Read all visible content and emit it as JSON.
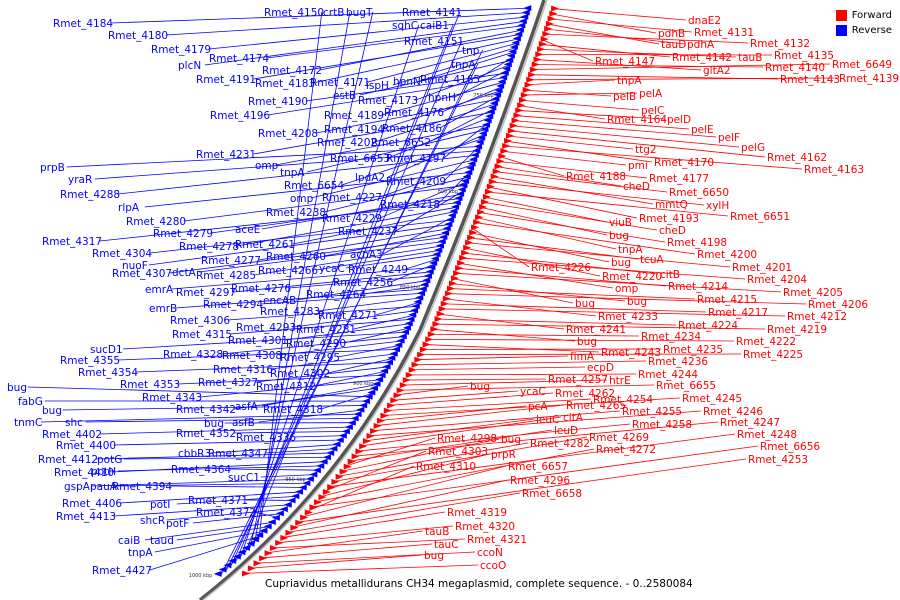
{
  "caption": "Cupriavidus metallidurans CH34 megaplasmid, complete sequence. - 0..2580084",
  "legend": {
    "forward": {
      "label": "Forward",
      "color": "#ff0000"
    },
    "reverse": {
      "label": "Reverse",
      "color": "#0000ff"
    }
  },
  "ticks": [
    "750 kbp",
    "800 kbp",
    "850 kbp",
    "900 kbp",
    "950 kbp",
    "1000 kbp"
  ],
  "reverse_genes": [
    [
      "Rmet_4184",
      53,
      19
    ],
    [
      "Rmet_4180",
      108,
      31
    ],
    [
      "Rmet_4179",
      151,
      45
    ],
    [
      "plcN",
      178,
      61
    ],
    [
      "Rmet_4174",
      209,
      54
    ],
    [
      "Rmet_4172",
      262,
      66
    ],
    [
      "Rmet_4191",
      196,
      75
    ],
    [
      "Rmet_4183",
      255,
      79
    ],
    [
      "Rmet_4171",
      310,
      78
    ],
    [
      "ispH",
      366,
      81
    ],
    [
      "hpnN",
      393,
      77
    ],
    [
      "Rmet_4165",
      420,
      75
    ],
    [
      "estB",
      333,
      91
    ],
    [
      "Rmet_4173",
      358,
      96
    ],
    [
      "hpnH",
      428,
      93
    ],
    [
      "Rmet_4190",
      248,
      97
    ],
    [
      "Rmet_4196",
      210,
      111
    ],
    [
      "Rmet_4189",
      324,
      111
    ],
    [
      "Rmet_4176",
      384,
      108
    ],
    [
      "Rmet_4194",
      324,
      125
    ],
    [
      "Rmet_4186",
      382,
      124
    ],
    [
      "Rmet_4208",
      258,
      129
    ],
    [
      "Rmet_4202",
      317,
      138
    ],
    [
      "Rmet_6652",
      371,
      138
    ],
    [
      "Rmet_4231",
      196,
      150
    ],
    [
      "Rmet_6653",
      330,
      154
    ],
    [
      "Rmet_4197",
      386,
      154
    ],
    [
      "omp",
      255,
      161
    ],
    [
      "tnpA",
      280,
      168
    ],
    [
      "lpdA2",
      355,
      173
    ],
    [
      "Rmet_6654",
      284,
      181
    ],
    [
      "Rmet_4209",
      386,
      177
    ],
    [
      "prpB",
      40,
      163
    ],
    [
      "yraR",
      68,
      175
    ],
    [
      "Rmet_4288",
      60,
      190
    ],
    [
      "omp",
      290,
      194
    ],
    [
      "Rmet_4227",
      322,
      193
    ],
    [
      "Rmet_4218",
      380,
      200
    ],
    [
      "rlpA",
      118,
      203
    ],
    [
      "Rmet_4238",
      266,
      208
    ],
    [
      "Rmet_4229",
      322,
      214
    ],
    [
      "Rmet_4280",
      126,
      217
    ],
    [
      "Rmet_4237",
      338,
      227
    ],
    [
      "aceE",
      235,
      225
    ],
    [
      "Rmet_4279",
      153,
      229
    ],
    [
      "Rmet_4317",
      42,
      237
    ],
    [
      "Rmet_4278",
      179,
      242
    ],
    [
      "Rmet_4261",
      235,
      240
    ],
    [
      "acnA3",
      350,
      250
    ],
    [
      "Rmet_4304",
      92,
      249
    ],
    [
      "nuoF",
      122,
      261
    ],
    [
      "Rmet_4277",
      201,
      256
    ],
    [
      "Rmet_4260",
      266,
      252
    ],
    [
      "Rmet_4307",
      112,
      269
    ],
    [
      "dctA",
      172,
      268
    ],
    [
      "Rmet_4285",
      196,
      271
    ],
    [
      "Rmet_4266",
      258,
      266
    ],
    [
      "ycaC",
      319,
      264
    ],
    [
      "Rmet_4249",
      348,
      265
    ],
    [
      "Rmet_4256",
      333,
      278
    ],
    [
      "emrA",
      145,
      285
    ],
    [
      "Rmet_4297",
      176,
      288
    ],
    [
      "Rmet_4276",
      231,
      284
    ],
    [
      "encAB",
      263,
      296
    ],
    [
      "Rmet_4264",
      306,
      290
    ],
    [
      "emrB",
      149,
      304
    ],
    [
      "Rmet_4294",
      203,
      300
    ],
    [
      "Rmet_4283",
      260,
      307
    ],
    [
      "Rmet_4271",
      318,
      311
    ],
    [
      "Rmet_4306",
      170,
      316
    ],
    [
      "Rmet_4293",
      236,
      323
    ],
    [
      "Rmet_4281",
      296,
      325
    ],
    [
      "Rmet_4315",
      172,
      330
    ],
    [
      "Rmet_4301",
      228,
      336
    ],
    [
      "Rmet_4290",
      286,
      339
    ],
    [
      "sucD1",
      90,
      345
    ],
    [
      "Rmet_4328",
      163,
      350
    ],
    [
      "Rmet_4308",
      222,
      351
    ],
    [
      "Rmet_4295",
      280,
      353
    ],
    [
      "Rmet_4355",
      60,
      356
    ],
    [
      "Rmet_4316",
      213,
      365
    ],
    [
      "Rmet_4302",
      270,
      369
    ],
    [
      "Rmet_4354",
      78,
      368
    ],
    [
      "Rmet_4327",
      198,
      378
    ],
    [
      "Rmet_4312",
      256,
      382
    ],
    [
      "Rmet_4353",
      120,
      380
    ],
    [
      "Rmet_4343",
      142,
      393
    ],
    [
      "asfA",
      235,
      402
    ],
    [
      "Rmet_4342",
      176,
      405
    ],
    [
      "Rmet_4318",
      263,
      405
    ],
    [
      "bug",
      7,
      383
    ],
    [
      "fabG",
      18,
      397
    ],
    [
      "bug",
      42,
      406
    ],
    [
      "asfB",
      232,
      418
    ],
    [
      "tnmC",
      14,
      418
    ],
    [
      "shc",
      65,
      418
    ],
    [
      "bug",
      204,
      419
    ],
    [
      "Rmet_4402",
      42,
      430
    ],
    [
      "Rmet_4352",
      176,
      429
    ],
    [
      "Rmet_4336",
      236,
      433
    ],
    [
      "Rmet_4400",
      56,
      441
    ],
    [
      "cbbR3",
      178,
      449
    ],
    [
      "Rmet_4347",
      208,
      449
    ],
    [
      "Rmet_4412",
      38,
      455
    ],
    [
      "potG",
      97,
      455
    ],
    [
      "Rmet_4410",
      54,
      468
    ],
    [
      "potH",
      91,
      467
    ],
    [
      "Rmet_4364",
      171,
      465
    ],
    [
      "sucC1",
      228,
      473
    ],
    [
      "gspA",
      64,
      482
    ],
    [
      "pauA",
      90,
      482
    ],
    [
      "Rmet_4394",
      112,
      482
    ],
    [
      "Rmet_4406",
      62,
      499
    ],
    [
      "potI",
      150,
      500
    ],
    [
      "Rmet_4371",
      188,
      496
    ],
    [
      "Rmet_4413",
      56,
      512
    ],
    [
      "shcR",
      140,
      516
    ],
    [
      "potF",
      166,
      519
    ],
    [
      "Rmet_4372",
      196,
      508
    ],
    [
      "caiB",
      118,
      536
    ],
    [
      "taud",
      150,
      536
    ],
    [
      "tnpA",
      128,
      548
    ],
    [
      "Rmet_4427",
      92,
      566
    ],
    [
      "Rmet_4150",
      264,
      8
    ],
    [
      "crtB",
      323,
      8
    ],
    [
      "bugT",
      346,
      8
    ],
    [
      "Rmet_4141",
      402,
      8
    ],
    [
      "sqhC",
      392,
      21
    ],
    [
      "caiB1",
      420,
      21
    ],
    [
      "Rmet_4151",
      404,
      37
    ],
    [
      "tnp",
      462,
      46
    ],
    [
      "tnpA",
      451,
      60
    ]
  ],
  "forward_genes": [
    [
      "dnaE2",
      688,
      16
    ],
    [
      "pdhB",
      658,
      29
    ],
    [
      "Rmet_4131",
      694,
      28
    ],
    [
      "tauD",
      661,
      40
    ],
    [
      "pdhA",
      687,
      40
    ],
    [
      "Rmet_4132",
      750,
      39
    ],
    [
      "Rmet_4147",
      595,
      57
    ],
    [
      "Rmet_4142",
      672,
      53
    ],
    [
      "tauB",
      738,
      53
    ],
    [
      "Rmet_4135",
      774,
      51
    ],
    [
      "gltA2",
      703,
      66
    ],
    [
      "Rmet_4140",
      765,
      63
    ],
    [
      "Rmet_6649",
      832,
      60
    ],
    [
      "Rmet_4143",
      780,
      75
    ],
    [
      "Rmet_4139",
      839,
      74
    ],
    [
      "tnpA",
      617,
      76
    ],
    [
      "pelB",
      613,
      92
    ],
    [
      "pelA",
      639,
      89
    ],
    [
      "pelC",
      641,
      106
    ],
    [
      "Rmet_4164",
      607,
      115
    ],
    [
      "pelD",
      667,
      115
    ],
    [
      "pelE",
      691,
      125
    ],
    [
      "pelF",
      718,
      133
    ],
    [
      "pelG",
      741,
      143
    ],
    [
      "Rmet_4162",
      767,
      153
    ],
    [
      "ttg2",
      635,
      145
    ],
    [
      "Rmet_4170",
      654,
      158
    ],
    [
      "Rmet_4163",
      804,
      165
    ],
    [
      "pmi",
      628,
      161
    ],
    [
      "Rmet_4188",
      566,
      172
    ],
    [
      "Rmet_4177",
      649,
      174
    ],
    [
      "cheD",
      623,
      182
    ],
    [
      "Rmet_6650",
      669,
      188
    ],
    [
      "mmtQ",
      655,
      200
    ],
    [
      "xylH",
      706,
      201
    ],
    [
      "Rmet_4193",
      639,
      214
    ],
    [
      "Rmet_6651",
      730,
      212
    ],
    [
      "viuB",
      609,
      218
    ],
    [
      "cheD",
      659,
      226
    ],
    [
      "bug",
      609,
      231
    ],
    [
      "Rmet_4198",
      667,
      238
    ],
    [
      "tnpA",
      618,
      245
    ],
    [
      "Rmet_4200",
      697,
      250
    ],
    [
      "Rmet_4226",
      531,
      263
    ],
    [
      "bug",
      611,
      258
    ],
    [
      "tcuA",
      640,
      255
    ],
    [
      "Rmet_4201",
      732,
      263
    ],
    [
      "Rmet_4220",
      602,
      272
    ],
    [
      "citB",
      660,
      270
    ],
    [
      "Rmet_4204",
      747,
      275
    ],
    [
      "omp",
      615,
      284
    ],
    [
      "Rmet_4214",
      668,
      282
    ],
    [
      "Rmet_4205",
      783,
      288
    ],
    [
      "bug",
      575,
      299
    ],
    [
      "bug",
      627,
      297
    ],
    [
      "Rmet_4215",
      697,
      295
    ],
    [
      "Rmet_4206",
      808,
      300
    ],
    [
      "Rmet_4233",
      598,
      312
    ],
    [
      "Rmet_4217",
      708,
      308
    ],
    [
      "Rmet_4212",
      787,
      312
    ],
    [
      "Rmet_4241",
      566,
      325
    ],
    [
      "Rmet_4224",
      678,
      321
    ],
    [
      "Rmet_4219",
      767,
      325
    ],
    [
      "bug",
      577,
      337
    ],
    [
      "Rmet_4234",
      641,
      332
    ],
    [
      "Rmet_4222",
      736,
      337
    ],
    [
      "Rmet_4243",
      601,
      348
    ],
    [
      "Rmet_4235",
      663,
      345
    ],
    [
      "Rmet_4225",
      743,
      350
    ],
    [
      "fimA",
      570,
      352
    ],
    [
      "Rmet_4236",
      648,
      357
    ],
    [
      "ecpD",
      587,
      363
    ],
    [
      "Rmet_4244",
      638,
      370
    ],
    [
      "Rmet_4257",
      548,
      375
    ],
    [
      "htrE",
      609,
      376
    ],
    [
      "Rmet_6655",
      656,
      381
    ],
    [
      "bug",
      470,
      382
    ],
    [
      "ycaC",
      520,
      387
    ],
    [
      "Rmet_4262",
      555,
      389
    ],
    [
      "Rmet_4254",
      593,
      395
    ],
    [
      "Rmet_4245",
      682,
      394
    ],
    [
      "pcA",
      528,
      402
    ],
    [
      "Rmet_4265",
      566,
      401
    ],
    [
      "Rmet_4255",
      622,
      407
    ],
    [
      "Rmet_4246",
      703,
      407
    ],
    [
      "leuC",
      536,
      415
    ],
    [
      "citA",
      563,
      413
    ],
    [
      "Rmet_4258",
      632,
      420
    ],
    [
      "Rmet_4247",
      720,
      418
    ],
    [
      "leuD",
      554,
      426
    ],
    [
      "Rmet_4298",
      437,
      434
    ],
    [
      "bug",
      501,
      435
    ],
    [
      "Rmet_4282",
      530,
      439
    ],
    [
      "Rmet_4269",
      589,
      433
    ],
    [
      "Rmet_4248",
      737,
      430
    ],
    [
      "Rmet_4303",
      428,
      447
    ],
    [
      "prpR",
      491,
      450
    ],
    [
      "Rmet_4272",
      596,
      445
    ],
    [
      "Rmet_6656",
      760,
      442
    ],
    [
      "Rmet_4310",
      416,
      462
    ],
    [
      "Rmet_6657",
      508,
      462
    ],
    [
      "Rmet_4253",
      748,
      455
    ],
    [
      "Rmet_4296",
      510,
      476
    ],
    [
      "Rmet_6658",
      522,
      489
    ],
    [
      "Rmet_4319",
      447,
      508
    ],
    [
      "Rmet_4320",
      455,
      522
    ],
    [
      "Rmet_4321",
      467,
      535
    ],
    [
      "tauB",
      425,
      527
    ],
    [
      "tauC",
      434,
      540
    ],
    [
      "ccoN",
      477,
      548
    ],
    [
      "bug",
      424,
      551
    ],
    [
      "ccoO",
      480,
      561
    ]
  ]
}
